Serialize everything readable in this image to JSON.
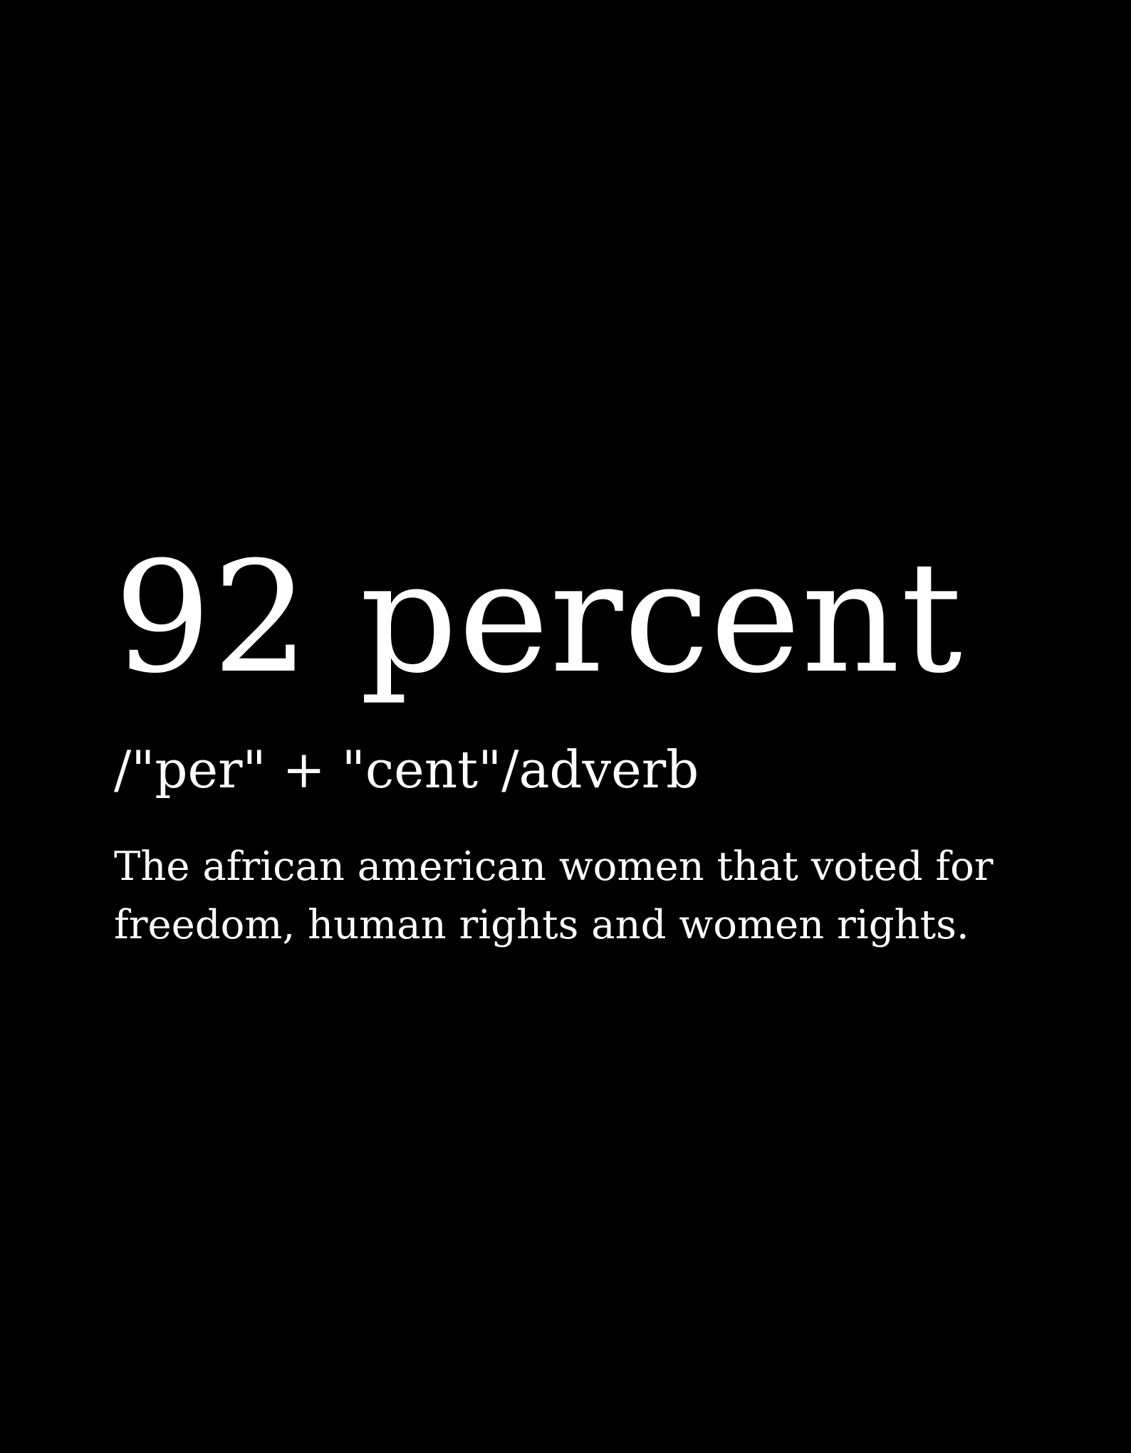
{
  "definition": {
    "term": "92 percent",
    "pronunciation": "/\"per\" + \"cent\"/adverb",
    "meaning_lines": [
      "The african american women that voted for",
      "freedom, human rights and women rights."
    ]
  },
  "colors": {
    "background": "#000000",
    "text": "#ffffff"
  }
}
